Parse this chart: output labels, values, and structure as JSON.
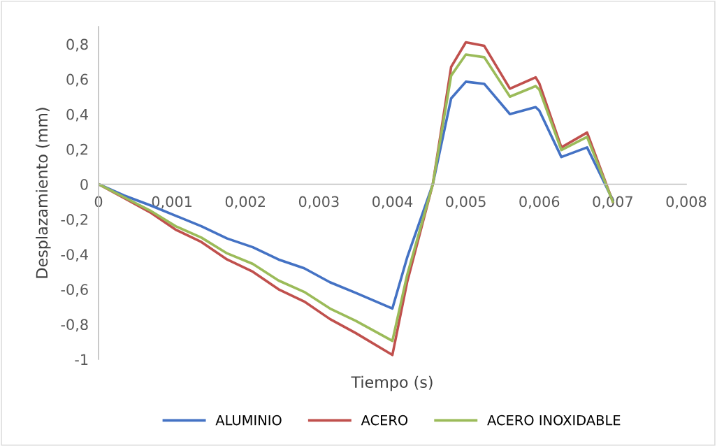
{
  "chart_data": {
    "type": "line",
    "xlabel": "Tiempo (s)",
    "ylabel": "Desplazamiento (mm)",
    "x": [
      0,
      0.00035,
      0.0007,
      0.00105,
      0.0014,
      0.00175,
      0.0021,
      0.00245,
      0.0028,
      0.00315,
      0.0035,
      0.004,
      0.0042,
      0.00455,
      0.0048,
      0.005,
      0.00525,
      0.0056,
      0.00595,
      0.006,
      0.0063,
      0.00665,
      0.007
    ],
    "series": [
      {
        "name": "ALUMINIO",
        "color": "#4472c4",
        "values": [
          0,
          -0.065,
          -0.12,
          -0.18,
          -0.24,
          -0.31,
          -0.36,
          -0.43,
          -0.48,
          -0.56,
          -0.62,
          -0.71,
          -0.42,
          0,
          0.49,
          0.585,
          0.573,
          0.4,
          0.44,
          0.42,
          0.155,
          0.21,
          -0.09
        ]
      },
      {
        "name": "ACERO",
        "color": "#c0504d",
        "values": [
          0,
          -0.08,
          -0.16,
          -0.26,
          -0.33,
          -0.43,
          -0.5,
          -0.6,
          -0.67,
          -0.77,
          -0.85,
          -0.975,
          -0.56,
          0,
          0.67,
          0.81,
          0.79,
          0.545,
          0.61,
          0.575,
          0.21,
          0.295,
          -0.1
        ]
      },
      {
        "name": "ACERO INOXIDABLE",
        "color": "#9bbb59",
        "values": [
          0,
          -0.075,
          -0.15,
          -0.24,
          -0.305,
          -0.395,
          -0.455,
          -0.55,
          -0.615,
          -0.71,
          -0.78,
          -0.895,
          -0.52,
          0,
          0.62,
          0.74,
          0.725,
          0.5,
          0.56,
          0.54,
          0.195,
          0.27,
          -0.1
        ]
      }
    ],
    "xlim": [
      0,
      0.008
    ],
    "ylim": [
      -1,
      0.9
    ],
    "xticks": [
      0,
      {
        "value": 0.001,
        "label": "0,001"
      },
      {
        "value": 0.002,
        "label": "0,002"
      },
      {
        "value": 0.003,
        "label": "0,003"
      },
      {
        "value": 0.004,
        "label": "0,004"
      },
      {
        "value": 0.005,
        "label": "0,005"
      },
      {
        "value": 0.006,
        "label": "0,006"
      },
      {
        "value": 0.007,
        "label": "0,007"
      },
      {
        "value": 0.008,
        "label": "0,008"
      }
    ],
    "yticks": [
      -1,
      {
        "value": -0.8,
        "label": "-0,8"
      },
      {
        "value": -0.6,
        "label": "-0,6"
      },
      {
        "value": -0.4,
        "label": "-0,4"
      },
      {
        "value": -0.2,
        "label": "-0,2"
      },
      0,
      {
        "value": 0.2,
        "label": "0,2"
      },
      {
        "value": 0.4,
        "label": "0,4"
      },
      {
        "value": 0.6,
        "label": "0,6"
      },
      {
        "value": 0.8,
        "label": "0,8"
      }
    ],
    "grid": false,
    "legend": "bottom",
    "marker": "none",
    "line_style": "solid"
  }
}
